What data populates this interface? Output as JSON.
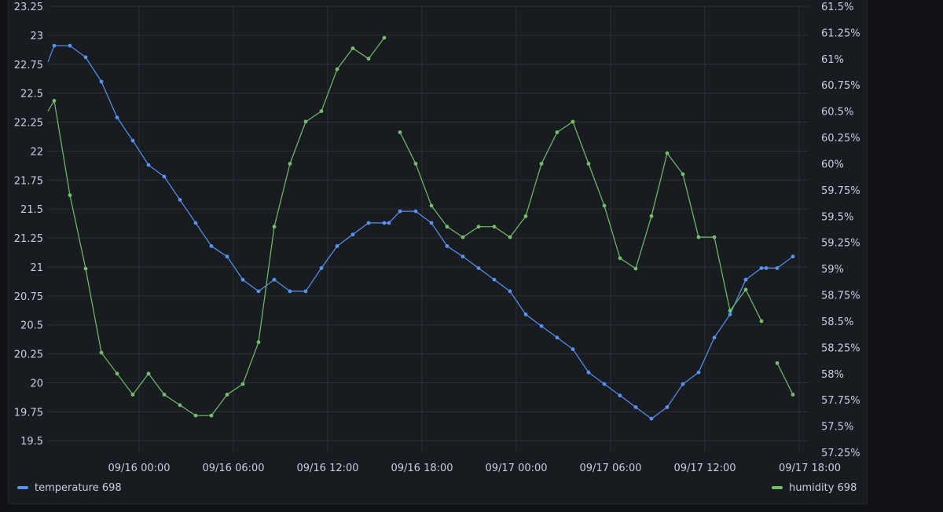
{
  "chart_data": {
    "type": "line",
    "x_ticks": [
      "09/16 00:00",
      "09/16 06:00",
      "09/16 12:00",
      "09/16 18:00",
      "09/17 00:00",
      "09/17 06:00",
      "09/17 12:00",
      "09/17 18:00"
    ],
    "y_left_ticks": [
      "23.25",
      "23",
      "22.75",
      "22.5",
      "22.25",
      "22",
      "21.75",
      "21.5",
      "21.25",
      "21",
      "20.75",
      "20.5",
      "20.25",
      "20",
      "19.75",
      "19.5"
    ],
    "y_right_ticks": [
      "61.5%",
      "61.25%",
      "61%",
      "60.75%",
      "60.5%",
      "60.25%",
      "60%",
      "59.75%",
      "59.5%",
      "59.25%",
      "59%",
      "58.75%",
      "58.5%",
      "58.25%",
      "58%",
      "57.75%",
      "57.5%",
      "57.25%"
    ],
    "ylim_left": [
      19.4,
      23.25
    ],
    "ylim_right": [
      57.25,
      61.5
    ],
    "xlim_hours": [
      -5.8,
      42.6
    ],
    "grid": true,
    "legend_placement": "bottom",
    "series": [
      {
        "name": "temperature 698",
        "axis": "left",
        "color": "#5794f2",
        "points": [
          [
            -5.8,
            22.77
          ],
          [
            -5.4,
            22.91
          ],
          [
            -4.4,
            22.91
          ],
          [
            -3.4,
            22.81
          ],
          [
            -2.4,
            22.6
          ],
          [
            -1.4,
            22.29
          ],
          [
            -0.4,
            22.09
          ],
          [
            0.6,
            21.88
          ],
          [
            1.6,
            21.78
          ],
          [
            2.6,
            21.58
          ],
          [
            3.6,
            21.38
          ],
          [
            4.6,
            21.18
          ],
          [
            5.6,
            21.09
          ],
          [
            6.6,
            20.89
          ],
          [
            7.6,
            20.79
          ],
          [
            8.6,
            20.89
          ],
          [
            9.6,
            20.79
          ],
          [
            10.6,
            20.79
          ],
          [
            11.6,
            20.99
          ],
          [
            12.6,
            21.18
          ],
          [
            13.6,
            21.28
          ],
          [
            14.6,
            21.38
          ],
          [
            15.6,
            21.38
          ],
          [
            15.9,
            21.38
          ],
          [
            16.6,
            21.48
          ],
          [
            17.6,
            21.48
          ],
          [
            18.6,
            21.38
          ],
          [
            19.6,
            21.18
          ],
          [
            20.6,
            21.09
          ],
          [
            21.6,
            20.99
          ],
          [
            22.6,
            20.89
          ],
          [
            23.6,
            20.79
          ],
          [
            24.6,
            20.59
          ],
          [
            25.6,
            20.49
          ],
          [
            26.6,
            20.39
          ],
          [
            27.6,
            20.29
          ],
          [
            28.6,
            20.09
          ],
          [
            29.6,
            19.99
          ],
          [
            30.6,
            19.89
          ],
          [
            31.6,
            19.79
          ],
          [
            32.6,
            19.69
          ],
          [
            33.6,
            19.79
          ],
          [
            34.6,
            19.99
          ],
          [
            35.6,
            20.09
          ],
          [
            36.6,
            20.39
          ],
          [
            37.6,
            20.59
          ],
          [
            38.6,
            20.89
          ],
          [
            39.6,
            20.99
          ],
          [
            39.9,
            20.99
          ],
          [
            40.6,
            20.99
          ],
          [
            41.6,
            21.09
          ]
        ]
      },
      {
        "name": "humidity 698",
        "axis": "right",
        "color": "#73bf69",
        "points": [
          [
            -5.8,
            60.5
          ],
          [
            -5.4,
            60.6
          ],
          [
            -4.4,
            59.7
          ],
          [
            -3.4,
            59.0
          ],
          [
            -2.4,
            58.2
          ],
          [
            -1.4,
            58.0
          ],
          [
            -0.4,
            57.8
          ],
          [
            0.6,
            58.0
          ],
          [
            1.6,
            57.8
          ],
          [
            2.6,
            57.7
          ],
          [
            3.6,
            57.6
          ],
          [
            4.6,
            57.6
          ],
          [
            5.6,
            57.8
          ],
          [
            6.6,
            57.9
          ],
          [
            7.6,
            58.3
          ],
          [
            8.6,
            59.4
          ],
          [
            9.6,
            60.0
          ],
          [
            10.6,
            60.4
          ],
          [
            11.6,
            60.5
          ],
          [
            12.6,
            60.9
          ],
          [
            13.6,
            61.1
          ],
          [
            14.6,
            61.0
          ],
          [
            15.6,
            61.2
          ],
          null,
          [
            16.6,
            60.3
          ],
          [
            17.6,
            60.0
          ],
          [
            18.6,
            59.6
          ],
          [
            19.6,
            59.4
          ],
          [
            20.6,
            59.3
          ],
          [
            21.6,
            59.4
          ],
          [
            22.6,
            59.4
          ],
          [
            23.6,
            59.3
          ],
          [
            24.6,
            59.5
          ],
          [
            25.6,
            60.0
          ],
          [
            26.6,
            60.3
          ],
          [
            27.6,
            60.4
          ],
          [
            28.6,
            60.0
          ],
          [
            29.6,
            59.6
          ],
          [
            30.6,
            59.1
          ],
          [
            31.6,
            59.0
          ],
          [
            32.6,
            59.5
          ],
          [
            33.6,
            60.1
          ],
          [
            34.6,
            59.9
          ],
          [
            35.6,
            59.3
          ],
          [
            36.6,
            59.3
          ],
          [
            37.6,
            58.6
          ],
          [
            38.6,
            58.8
          ],
          [
            39.6,
            58.5
          ],
          null,
          [
            40.6,
            58.1
          ],
          [
            41.6,
            57.8
          ]
        ]
      }
    ]
  },
  "legend": {
    "temperature_label": "temperature 698",
    "humidity_label": "humidity 698"
  }
}
